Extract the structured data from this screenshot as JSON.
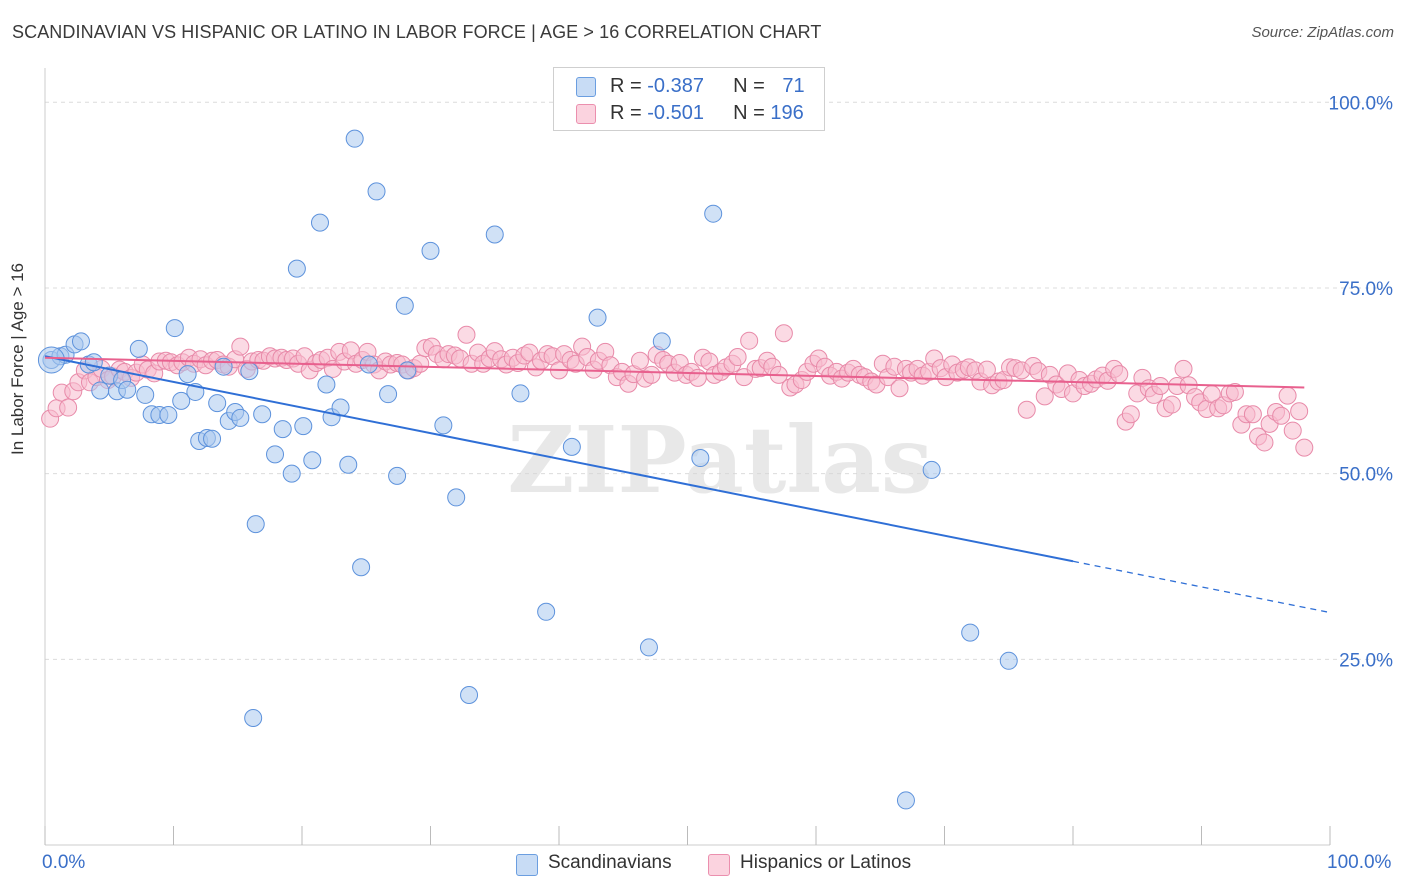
{
  "title": "SCANDINAVIAN VS HISPANIC OR LATINO IN LABOR FORCE | AGE > 16 CORRELATION CHART",
  "source": "Source: ZipAtlas.com",
  "watermark": "ZIPatlas",
  "legend_stats": [
    {
      "r_label": "R = ",
      "r_value": "-0.387",
      "n_label": "N = ",
      "n_value": "71",
      "color": "#a9c8ef",
      "border": "#6b9ee0"
    },
    {
      "r_label": "R = ",
      "r_value": "-0.501",
      "n_label": "N = ",
      "n_value": "196",
      "color": "#f7bccd",
      "border": "#eb8fae"
    }
  ],
  "bottom_legend": [
    "Scandinavians",
    "Hispanics or Latinos"
  ],
  "x_tick_min": "0.0%",
  "x_tick_max": "100.0%",
  "chart_data": {
    "type": "scatter",
    "xlabel": "",
    "ylabel": "In Labor Force | Age > 16",
    "xlim": [
      0,
      100
    ],
    "ylim": [
      0,
      103
    ],
    "y_ticks": [
      {
        "value": 100,
        "label": "100.0%"
      },
      {
        "value": 75,
        "label": "75.0%"
      },
      {
        "value": 50,
        "label": "50.0%"
      },
      {
        "value": 25,
        "label": "25.0%"
      }
    ],
    "grid": "horizontal-dashed",
    "legend_position": "top-center",
    "series": [
      {
        "name": "Scandinavians",
        "color": "#a9c8ef",
        "stroke": "#5d92dc",
        "line_color": "#2f6fd6",
        "trend": {
          "x0": 0,
          "y0": 65.8,
          "x1": 80,
          "y1": 38.2,
          "dash_to_x": 100,
          "dash_to_y": 31.3
        },
        "points": [
          [
            0.5,
            65.3
          ],
          [
            1.2,
            65.8
          ],
          [
            1.6,
            66.0
          ],
          [
            2.3,
            67.4
          ],
          [
            2.8,
            67.8
          ],
          [
            3.4,
            64.7
          ],
          [
            3.8,
            65.0
          ],
          [
            4.3,
            61.2
          ],
          [
            5.0,
            63.2
          ],
          [
            5.6,
            61.1
          ],
          [
            6.0,
            62.6
          ],
          [
            6.4,
            61.3
          ],
          [
            7.3,
            66.8
          ],
          [
            7.8,
            60.6
          ],
          [
            8.3,
            58.0
          ],
          [
            8.9,
            57.9
          ],
          [
            9.6,
            57.9
          ],
          [
            10.1,
            69.6
          ],
          [
            10.6,
            59.8
          ],
          [
            11.1,
            63.4
          ],
          [
            11.7,
            61.0
          ],
          [
            12.0,
            54.4
          ],
          [
            12.6,
            54.8
          ],
          [
            13.0,
            54.7
          ],
          [
            13.4,
            59.5
          ],
          [
            13.9,
            64.4
          ],
          [
            14.3,
            57.1
          ],
          [
            14.8,
            58.3
          ],
          [
            15.2,
            57.5
          ],
          [
            15.9,
            63.8
          ],
          [
            16.4,
            43.2
          ],
          [
            16.9,
            58.0
          ],
          [
            17.9,
            52.6
          ],
          [
            18.5,
            56.0
          ],
          [
            19.2,
            50.0
          ],
          [
            19.6,
            77.6
          ],
          [
            20.1,
            56.4
          ],
          [
            20.8,
            51.8
          ],
          [
            21.4,
            83.8
          ],
          [
            21.9,
            62.0
          ],
          [
            22.3,
            57.6
          ],
          [
            23.0,
            58.9
          ],
          [
            23.6,
            51.2
          ],
          [
            24.1,
            95.1
          ],
          [
            24.6,
            37.4
          ],
          [
            25.2,
            64.7
          ],
          [
            25.8,
            88.0
          ],
          [
            26.7,
            60.7
          ],
          [
            27.4,
            49.7
          ],
          [
            28.0,
            72.6
          ],
          [
            28.2,
            63.9
          ],
          [
            30.0,
            80.0
          ],
          [
            31.0,
            56.5
          ],
          [
            32.0,
            46.8
          ],
          [
            33.0,
            20.2
          ],
          [
            35.0,
            82.2
          ],
          [
            37.0,
            60.8
          ],
          [
            39.0,
            31.4
          ],
          [
            41.0,
            53.6
          ],
          [
            43.0,
            71.0
          ],
          [
            47.0,
            26.6
          ],
          [
            48.0,
            67.8
          ],
          [
            51.0,
            52.1
          ],
          [
            52.0,
            85.0
          ],
          [
            16.2,
            17.1
          ],
          [
            67.0,
            6.0
          ],
          [
            69.0,
            50.5
          ],
          [
            72.0,
            28.6
          ],
          [
            75.0,
            24.8
          ]
        ]
      },
      {
        "name": "Hispanics or Latinos",
        "color": "#f7bccd",
        "stroke": "#e88aa9",
        "line_color": "#e8608e",
        "trend": {
          "x0": 0,
          "y0": 65.6,
          "x1": 98,
          "y1": 61.6
        },
        "points": [
          [
            0.4,
            57.4
          ],
          [
            0.9,
            58.8
          ],
          [
            1.3,
            60.9
          ],
          [
            1.8,
            58.9
          ],
          [
            2.2,
            61.1
          ],
          [
            2.6,
            62.3
          ],
          [
            3.1,
            63.9
          ],
          [
            3.5,
            62.3
          ],
          [
            4.0,
            63.0
          ],
          [
            4.4,
            64.1
          ],
          [
            4.9,
            62.6
          ],
          [
            5.3,
            63.1
          ],
          [
            5.8,
            64.0
          ],
          [
            6.2,
            63.7
          ],
          [
            6.7,
            62.9
          ],
          [
            7.1,
            63.6
          ],
          [
            7.6,
            64.7
          ],
          [
            8.0,
            64.0
          ],
          [
            8.5,
            63.5
          ],
          [
            8.9,
            65.1
          ],
          [
            9.4,
            65.2
          ],
          [
            9.8,
            65.0
          ],
          [
            10.3,
            64.6
          ],
          [
            10.7,
            65.0
          ],
          [
            11.2,
            65.6
          ],
          [
            11.6,
            64.8
          ],
          [
            12.1,
            65.4
          ],
          [
            12.5,
            64.6
          ],
          [
            13.0,
            65.2
          ],
          [
            13.4,
            65.3
          ],
          [
            13.9,
            64.7
          ],
          [
            14.3,
            64.4
          ],
          [
            14.8,
            65.4
          ],
          [
            15.2,
            67.1
          ],
          [
            15.7,
            64.1
          ],
          [
            16.1,
            65.1
          ],
          [
            16.6,
            65.3
          ],
          [
            17.0,
            65.2
          ],
          [
            17.5,
            65.8
          ],
          [
            17.9,
            65.5
          ],
          [
            18.4,
            65.6
          ],
          [
            18.8,
            65.3
          ],
          [
            19.3,
            65.5
          ],
          [
            19.7,
            64.8
          ],
          [
            20.2,
            65.8
          ],
          [
            20.6,
            63.9
          ],
          [
            21.1,
            64.9
          ],
          [
            21.5,
            65.3
          ],
          [
            22.0,
            65.6
          ],
          [
            22.4,
            64.1
          ],
          [
            22.9,
            66.4
          ],
          [
            23.3,
            65.1
          ],
          [
            23.8,
            66.6
          ],
          [
            24.2,
            64.8
          ],
          [
            24.7,
            65.3
          ],
          [
            25.1,
            66.4
          ],
          [
            25.6,
            64.7
          ],
          [
            26.0,
            63.9
          ],
          [
            26.5,
            65.1
          ],
          [
            26.9,
            64.7
          ],
          [
            27.4,
            64.9
          ],
          [
            27.8,
            64.7
          ],
          [
            28.3,
            63.9
          ],
          [
            28.7,
            64.2
          ],
          [
            29.2,
            64.8
          ],
          [
            29.6,
            66.9
          ],
          [
            30.1,
            67.1
          ],
          [
            30.5,
            66.1
          ],
          [
            31.0,
            65.4
          ],
          [
            31.4,
            66.1
          ],
          [
            31.9,
            65.9
          ],
          [
            32.3,
            65.5
          ],
          [
            32.8,
            68.7
          ],
          [
            33.2,
            64.8
          ],
          [
            33.7,
            66.3
          ],
          [
            34.1,
            64.8
          ],
          [
            34.6,
            65.5
          ],
          [
            35.0,
            66.5
          ],
          [
            35.5,
            65.4
          ],
          [
            35.9,
            64.7
          ],
          [
            36.4,
            65.6
          ],
          [
            36.8,
            64.9
          ],
          [
            37.3,
            65.9
          ],
          [
            37.7,
            66.3
          ],
          [
            38.2,
            64.3
          ],
          [
            38.6,
            65.2
          ],
          [
            39.1,
            66.1
          ],
          [
            39.5,
            65.8
          ],
          [
            40.0,
            63.9
          ],
          [
            40.4,
            66.1
          ],
          [
            40.9,
            65.3
          ],
          [
            41.3,
            64.8
          ],
          [
            41.8,
            67.1
          ],
          [
            42.2,
            65.7
          ],
          [
            42.7,
            64.0
          ],
          [
            43.1,
            65.2
          ],
          [
            43.6,
            66.4
          ],
          [
            44.0,
            64.6
          ],
          [
            44.5,
            63.0
          ],
          [
            44.9,
            63.7
          ],
          [
            45.4,
            62.1
          ],
          [
            45.8,
            63.4
          ],
          [
            46.3,
            65.2
          ],
          [
            46.7,
            62.8
          ],
          [
            47.2,
            63.3
          ],
          [
            47.6,
            66.0
          ],
          [
            48.1,
            65.3
          ],
          [
            48.5,
            64.8
          ],
          [
            49.0,
            63.6
          ],
          [
            49.4,
            64.9
          ],
          [
            49.9,
            63.3
          ],
          [
            50.3,
            63.7
          ],
          [
            50.8,
            62.9
          ],
          [
            51.2,
            65.6
          ],
          [
            51.7,
            65.1
          ],
          [
            52.1,
            63.3
          ],
          [
            52.6,
            63.7
          ],
          [
            53.0,
            64.3
          ],
          [
            53.5,
            64.8
          ],
          [
            53.9,
            65.7
          ],
          [
            54.4,
            63.0
          ],
          [
            54.8,
            67.9
          ],
          [
            55.3,
            64.1
          ],
          [
            55.7,
            64.2
          ],
          [
            56.2,
            65.2
          ],
          [
            56.6,
            64.4
          ],
          [
            57.1,
            63.3
          ],
          [
            57.5,
            68.9
          ],
          [
            58.0,
            61.6
          ],
          [
            58.4,
            62.0
          ],
          [
            58.9,
            62.6
          ],
          [
            59.3,
            63.7
          ],
          [
            59.8,
            64.8
          ],
          [
            60.2,
            65.5
          ],
          [
            60.7,
            64.4
          ],
          [
            61.1,
            63.2
          ],
          [
            61.6,
            63.7
          ],
          [
            62.0,
            62.8
          ],
          [
            62.5,
            63.6
          ],
          [
            62.9,
            64.1
          ],
          [
            63.4,
            63.3
          ],
          [
            63.8,
            63.0
          ],
          [
            64.3,
            62.4
          ],
          [
            64.7,
            62.0
          ],
          [
            65.2,
            64.8
          ],
          [
            65.6,
            63.0
          ],
          [
            66.1,
            64.4
          ],
          [
            66.5,
            61.5
          ],
          [
            67.0,
            64.1
          ],
          [
            67.4,
            63.6
          ],
          [
            67.9,
            64.1
          ],
          [
            68.3,
            63.2
          ],
          [
            68.8,
            63.7
          ],
          [
            69.2,
            65.5
          ],
          [
            69.7,
            64.2
          ],
          [
            70.1,
            63.0
          ],
          [
            70.6,
            64.7
          ],
          [
            71.0,
            63.6
          ],
          [
            71.5,
            64.0
          ],
          [
            71.9,
            64.3
          ],
          [
            72.4,
            63.9
          ],
          [
            72.8,
            62.4
          ],
          [
            73.3,
            64.0
          ],
          [
            73.7,
            61.9
          ],
          [
            74.2,
            62.4
          ],
          [
            74.6,
            62.6
          ],
          [
            75.1,
            64.3
          ],
          [
            75.5,
            64.2
          ],
          [
            76.0,
            63.9
          ],
          [
            76.4,
            58.6
          ],
          [
            76.9,
            64.5
          ],
          [
            77.3,
            63.8
          ],
          [
            77.8,
            60.4
          ],
          [
            78.2,
            63.3
          ],
          [
            78.7,
            62.0
          ],
          [
            79.1,
            61.4
          ],
          [
            79.6,
            63.5
          ],
          [
            80.0,
            60.8
          ],
          [
            80.5,
            62.6
          ],
          [
            80.9,
            61.8
          ],
          [
            81.4,
            62.1
          ],
          [
            81.8,
            62.7
          ],
          [
            82.3,
            63.2
          ],
          [
            82.7,
            62.5
          ],
          [
            83.2,
            64.1
          ],
          [
            83.6,
            63.4
          ],
          [
            84.1,
            57.0
          ],
          [
            84.5,
            58.0
          ],
          [
            85.0,
            60.8
          ],
          [
            85.4,
            62.9
          ],
          [
            85.9,
            61.5
          ],
          [
            86.3,
            60.6
          ],
          [
            86.8,
            61.8
          ],
          [
            87.2,
            58.8
          ],
          [
            87.7,
            59.3
          ],
          [
            88.1,
            61.8
          ],
          [
            88.6,
            64.1
          ],
          [
            89.0,
            61.9
          ],
          [
            89.5,
            60.3
          ],
          [
            89.9,
            59.6
          ],
          [
            90.4,
            58.7
          ],
          [
            90.8,
            60.7
          ],
          [
            91.3,
            58.8
          ],
          [
            91.7,
            59.2
          ],
          [
            92.2,
            60.8
          ],
          [
            92.6,
            61.0
          ],
          [
            93.1,
            56.6
          ],
          [
            93.5,
            58.0
          ],
          [
            94.0,
            58.0
          ],
          [
            94.4,
            55.0
          ],
          [
            94.9,
            54.2
          ],
          [
            95.3,
            56.7
          ],
          [
            95.8,
            58.3
          ],
          [
            96.2,
            57.8
          ],
          [
            96.7,
            60.5
          ],
          [
            97.1,
            55.8
          ],
          [
            97.6,
            58.4
          ],
          [
            98.0,
            53.5
          ]
        ]
      }
    ]
  }
}
